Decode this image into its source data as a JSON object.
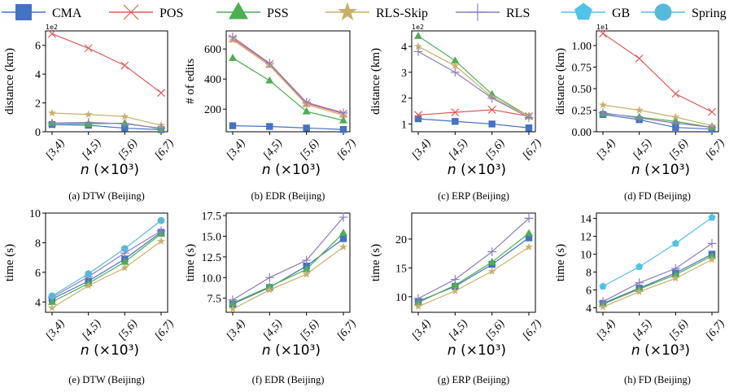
{
  "legend": [
    {
      "name": "CMA",
      "color": "#4472C4",
      "marker": "square"
    },
    {
      "name": "POS",
      "color": "#E05A57",
      "marker": "x"
    },
    {
      "name": "PSS",
      "color": "#4CAF50",
      "marker": "triangle"
    },
    {
      "name": "RLS-Skip",
      "color": "#C9B06A",
      "marker": "star"
    },
    {
      "name": "RLS",
      "color": "#8E7CC3",
      "marker": "plus"
    },
    {
      "name": "GB",
      "color": "#4FC3EA",
      "marker": "pentagon"
    },
    {
      "name": "Spring",
      "color": "#56B9DC",
      "marker": "circle"
    }
  ],
  "chart_data": [
    {
      "type": "line",
      "caption": "(a)  DTW (Beijing)",
      "categories": [
        "[3,4)",
        "[4,5)",
        "[5,6)",
        "[6,7)"
      ],
      "xlabel": "n (×10³)",
      "ylabel": "distance (km)",
      "exponent_label": "1e2",
      "ylim": [
        0,
        7
      ],
      "yticks": [
        0,
        2,
        4,
        6
      ],
      "series": [
        {
          "name": "CMA",
          "values": [
            0.5,
            0.45,
            0.25,
            0.15
          ]
        },
        {
          "name": "POS",
          "values": [
            6.8,
            5.8,
            4.6,
            2.7
          ]
        },
        {
          "name": "PSS",
          "values": [
            0.6,
            0.55,
            0.6,
            0.2
          ]
        },
        {
          "name": "RLS-Skip",
          "values": [
            1.3,
            1.2,
            1.05,
            0.45
          ]
        },
        {
          "name": "RLS",
          "values": [
            0.6,
            0.65,
            0.55,
            0.25
          ]
        }
      ]
    },
    {
      "type": "line",
      "caption": "(b)  EDR (Beijing)",
      "categories": [
        "[3,4)",
        "[4,5)",
        "[5,6)",
        "[6,7)"
      ],
      "xlabel": "n (×10³)",
      "ylabel": "# of edits",
      "ylim": [
        50,
        720
      ],
      "yticks": [
        200,
        400,
        600
      ],
      "series": [
        {
          "name": "CMA",
          "values": [
            90,
            85,
            75,
            65
          ]
        },
        {
          "name": "POS",
          "values": [
            670,
            500,
            240,
            170
          ]
        },
        {
          "name": "PSS",
          "values": [
            540,
            390,
            185,
            125
          ]
        },
        {
          "name": "RLS-Skip",
          "values": [
            660,
            490,
            230,
            160
          ]
        },
        {
          "name": "RLS",
          "values": [
            680,
            505,
            245,
            175
          ]
        }
      ]
    },
    {
      "type": "line",
      "caption": "(c)  ERP (Beijing)",
      "categories": [
        "[3,4)",
        "[4,5)",
        "[5,6)",
        "[6,7)"
      ],
      "xlabel": "n (×10³)",
      "ylabel": "distance (km)",
      "exponent_label": "1e2",
      "ylim": [
        0.7,
        4.6
      ],
      "yticks": [
        1,
        2,
        3,
        4
      ],
      "series": [
        {
          "name": "CMA",
          "values": [
            1.2,
            1.1,
            1.0,
            0.85
          ]
        },
        {
          "name": "POS",
          "values": [
            1.35,
            1.45,
            1.55,
            1.3
          ]
        },
        {
          "name": "PSS",
          "values": [
            4.4,
            3.45,
            2.15,
            1.3
          ]
        },
        {
          "name": "RLS-Skip",
          "values": [
            4.0,
            3.25,
            2.05,
            1.3
          ]
        },
        {
          "name": "RLS",
          "values": [
            3.8,
            3.0,
            2.0,
            1.25
          ]
        }
      ]
    },
    {
      "type": "line",
      "caption": "(d)  FD (Beijing)",
      "categories": [
        "[3,4)",
        "[4,5)",
        "[5,6)",
        "[6,7)"
      ],
      "xlabel": "n (×10³)",
      "ylabel": "distance (km)",
      "exponent_label": "1e1",
      "ylim": [
        0,
        1.17
      ],
      "yticks": [
        0,
        0.25,
        0.5,
        0.75,
        1.0
      ],
      "ytick_labels": [
        "0.00",
        "0.25",
        "0.50",
        "0.75",
        "1.00"
      ],
      "series": [
        {
          "name": "CMA",
          "values": [
            0.2,
            0.14,
            0.05,
            0.03
          ]
        },
        {
          "name": "POS",
          "values": [
            1.14,
            0.85,
            0.44,
            0.23
          ]
        },
        {
          "name": "PSS",
          "values": [
            0.21,
            0.17,
            0.12,
            0.05
          ]
        },
        {
          "name": "RLS-Skip",
          "values": [
            0.31,
            0.25,
            0.17,
            0.07
          ]
        },
        {
          "name": "RLS",
          "values": [
            0.22,
            0.16,
            0.1,
            0.05
          ]
        }
      ]
    },
    {
      "type": "line",
      "caption": "(e)  DTW (Beijing)",
      "categories": [
        "[3,4)",
        "[4,5)",
        "[5,6)",
        "[6,7)"
      ],
      "xlabel": "n (×10³)",
      "ylabel": "time (s)",
      "ylim": [
        3.3,
        10
      ],
      "yticks": [
        4,
        6,
        8,
        10
      ],
      "series": [
        {
          "name": "CMA",
          "values": [
            4.2,
            5.4,
            6.9,
            8.7
          ]
        },
        {
          "name": "PSS",
          "values": [
            4.0,
            5.25,
            6.7,
            8.6
          ]
        },
        {
          "name": "RLS-Skip",
          "values": [
            3.6,
            5.1,
            6.3,
            8.1
          ]
        },
        {
          "name": "RLS",
          "values": [
            4.3,
            5.7,
            7.3,
            8.8
          ]
        },
        {
          "name": "Spring",
          "values": [
            4.4,
            5.9,
            7.6,
            9.5
          ]
        }
      ]
    },
    {
      "type": "line",
      "caption": "(f)  EDR (Beijing)",
      "categories": [
        "[3,4)",
        "[4,5)",
        "[5,6)",
        "[6,7)"
      ],
      "xlabel": "n (×10³)",
      "ylabel": "time (s)",
      "ylim": [
        5.8,
        17.8
      ],
      "yticks": [
        7.5,
        10.0,
        12.5,
        15.0,
        17.5
      ],
      "ytick_labels": [
        "7.5",
        "10.0",
        "12.5",
        "15.0",
        "17.5"
      ],
      "series": [
        {
          "name": "CMA",
          "values": [
            6.8,
            8.8,
            11.4,
            14.7
          ]
        },
        {
          "name": "PSS",
          "values": [
            6.9,
            8.9,
            11.0,
            15.4
          ]
        },
        {
          "name": "RLS-Skip",
          "values": [
            6.2,
            8.5,
            10.4,
            13.7
          ]
        },
        {
          "name": "RLS",
          "values": [
            7.3,
            10.0,
            12.1,
            17.3
          ]
        }
      ]
    },
    {
      "type": "line",
      "caption": "(g)  ERP (Beijing)",
      "categories": [
        "[3,4)",
        "[4,5)",
        "[5,6)",
        "[6,7)"
      ],
      "xlabel": "n (×10³)",
      "ylabel": "time (s)",
      "ylim": [
        7.3,
        24.5
      ],
      "yticks": [
        10,
        15,
        20
      ],
      "series": [
        {
          "name": "CMA",
          "values": [
            9.2,
            11.8,
            15.6,
            20.2
          ]
        },
        {
          "name": "PSS",
          "values": [
            9.0,
            12.0,
            16.0,
            21.0
          ]
        },
        {
          "name": "RLS-Skip",
          "values": [
            8.3,
            11.0,
            14.4,
            18.6
          ]
        },
        {
          "name": "RLS",
          "values": [
            9.7,
            13.0,
            17.8,
            23.6
          ]
        }
      ]
    },
    {
      "type": "line",
      "caption": "(h)  FD (Beijing)",
      "categories": [
        "[3,4)",
        "[4,5)",
        "[5,6)",
        "[6,7)"
      ],
      "xlabel": "n (×10³)",
      "ylabel": "time (s)",
      "ylim": [
        3.5,
        14.6
      ],
      "yticks": [
        4,
        6,
        8,
        10,
        12,
        14
      ],
      "series": [
        {
          "name": "CMA",
          "values": [
            4.5,
            6.2,
            7.9,
            10.0
          ]
        },
        {
          "name": "PSS",
          "values": [
            4.4,
            6.1,
            7.7,
            9.8
          ]
        },
        {
          "name": "RLS-Skip",
          "values": [
            4.1,
            5.8,
            7.3,
            9.4
          ]
        },
        {
          "name": "RLS",
          "values": [
            4.7,
            6.8,
            8.4,
            11.2
          ]
        },
        {
          "name": "GB",
          "values": [
            6.4,
            8.6,
            11.2,
            14.1
          ]
        }
      ]
    }
  ]
}
